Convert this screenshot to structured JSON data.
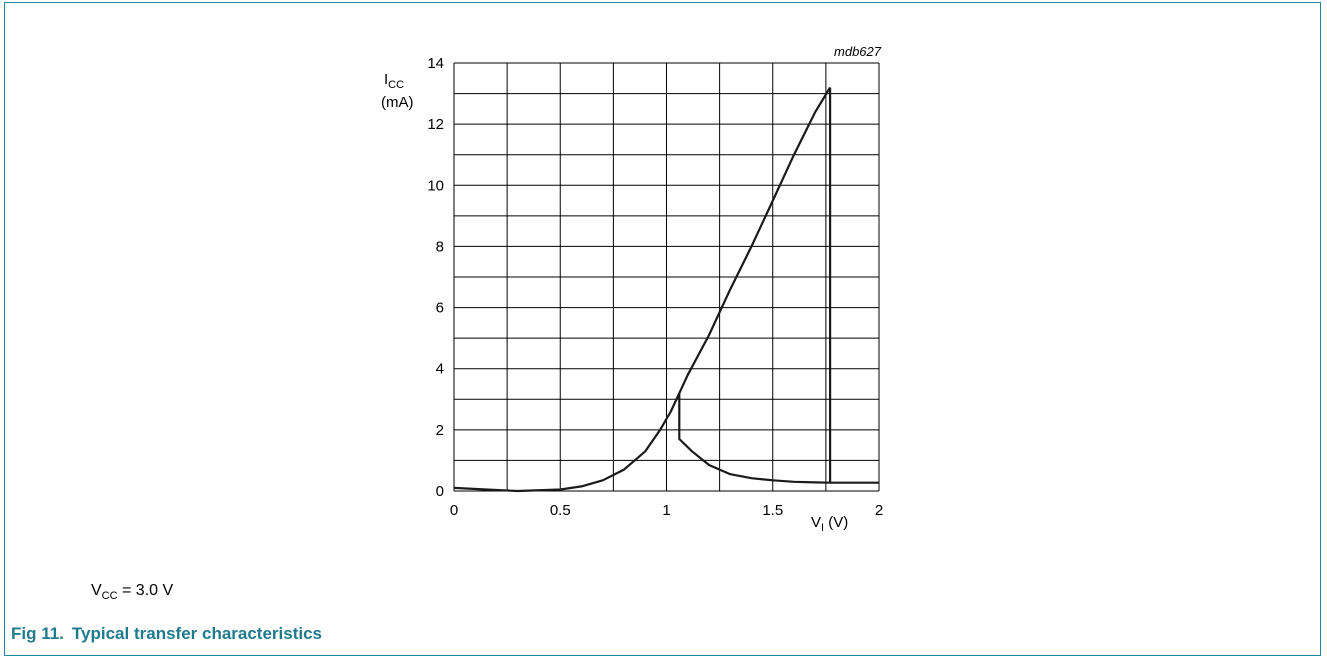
{
  "figure": {
    "code": "mdb627",
    "condition": {
      "base": "V",
      "sub": "CC",
      "rest": " = 3.0 V"
    },
    "caption_number": "Fig 11.",
    "caption_title": "Typical transfer characteristics"
  },
  "chart_data": {
    "type": "line",
    "title": "",
    "xlabel": {
      "base": "V",
      "sub": "I",
      "unit": " (V)"
    },
    "ylabel": {
      "base": "I",
      "sub": "CC",
      "unit": "(mA)"
    },
    "xlim": [
      0,
      2
    ],
    "ylim": [
      0,
      14
    ],
    "x_ticks": [
      "0",
      "0.5",
      "1",
      "1.5",
      "2"
    ],
    "y_ticks": [
      "0",
      "2",
      "4",
      "6",
      "8",
      "10",
      "12",
      "14"
    ],
    "grid": true,
    "series": [
      {
        "points": [
          [
            0,
            0.1
          ],
          [
            0.15,
            0.05
          ],
          [
            0.3,
            0.0
          ],
          [
            0.5,
            0.05
          ],
          [
            0.6,
            0.15
          ],
          [
            0.7,
            0.35
          ],
          [
            0.8,
            0.7
          ],
          [
            0.9,
            1.3
          ],
          [
            0.97,
            2.0
          ],
          [
            1.02,
            2.6
          ],
          [
            1.06,
            3.2
          ],
          [
            1.1,
            3.8
          ],
          [
            1.2,
            5.1
          ],
          [
            1.3,
            6.6
          ],
          [
            1.4,
            8.0
          ],
          [
            1.5,
            9.5
          ],
          [
            1.6,
            11.0
          ],
          [
            1.7,
            12.4
          ],
          [
            1.77,
            13.2
          ]
        ]
      },
      {
        "points": [
          [
            1.06,
            3.2
          ],
          [
            1.06,
            1.7
          ],
          [
            1.12,
            1.3
          ],
          [
            1.2,
            0.85
          ],
          [
            1.3,
            0.55
          ],
          [
            1.4,
            0.42
          ],
          [
            1.5,
            0.35
          ],
          [
            1.6,
            0.3
          ],
          [
            1.7,
            0.28
          ],
          [
            1.77,
            0.27
          ],
          [
            1.77,
            13.2
          ]
        ]
      },
      {
        "points": [
          [
            1.77,
            0.27
          ],
          [
            1.85,
            0.27
          ],
          [
            2.0,
            0.27
          ]
        ]
      }
    ]
  }
}
